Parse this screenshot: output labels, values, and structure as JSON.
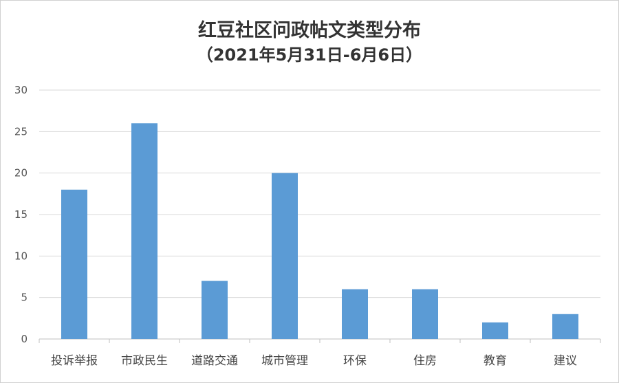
{
  "chart_data": {
    "type": "bar",
    "title": "红豆社区问政帖文类型分布",
    "subtitle": "（2021年5月31日-6月6日）",
    "categories": [
      "投诉举报",
      "市政民生",
      "道路交通",
      "城市管理",
      "环保",
      "住房",
      "教育",
      "建议"
    ],
    "values": [
      18,
      26,
      7,
      20,
      6,
      6,
      2,
      3
    ],
    "ylim": [
      0,
      30
    ],
    "yticks": [
      0,
      5,
      10,
      15,
      20,
      25,
      30
    ],
    "xlabel": "",
    "ylabel": "",
    "grid": true,
    "legend": "none",
    "bar_color": "#5b9bd5"
  }
}
